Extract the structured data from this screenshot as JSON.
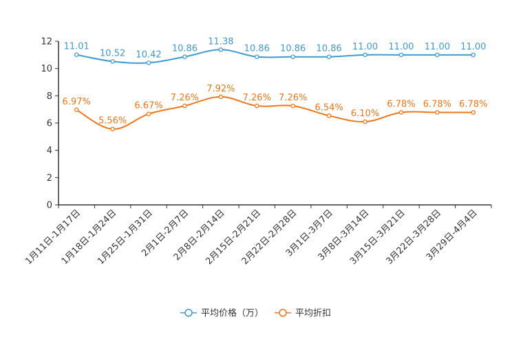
{
  "chart_data": {
    "type": "line",
    "title": "",
    "xlabel": "",
    "ylabel": "",
    "ylim": [
      0,
      12
    ],
    "yticks": [
      0,
      2,
      4,
      6,
      8,
      10,
      12
    ],
    "grid": false,
    "legend_position": "bottom-center",
    "categories": [
      "1月11日-1月17日",
      "1月18日-1月24日",
      "1月25日-1月31日",
      "2月1日-2月7日",
      "2月8日-2月14日",
      "2月15日-2月21日",
      "2月22日-2月28日",
      "3月1日-3月7日",
      "3月8日-3月14日",
      "3月15日-3月21日",
      "3月22日-3月28日",
      "3月29日-4月4日"
    ],
    "series": [
      {
        "name": "平均价格（万）",
        "color": "#3d9ad1",
        "values": [
          11.01,
          10.52,
          10.42,
          10.86,
          11.38,
          10.86,
          10.86,
          10.86,
          11.0,
          11.0,
          11.0,
          11.0
        ],
        "labels": [
          "11.01",
          "10.52",
          "10.42",
          "10.86",
          "11.38",
          "10.86",
          "10.86",
          "10.86",
          "11.00",
          "11.00",
          "11.00",
          "11.00"
        ]
      },
      {
        "name": "平均折扣",
        "color": "#f07518",
        "values": [
          6.97,
          5.56,
          6.67,
          7.26,
          7.92,
          7.26,
          7.26,
          6.54,
          6.1,
          6.78,
          6.78,
          6.78
        ],
        "labels": [
          "6.97%",
          "5.56%",
          "6.67%",
          "7.26%",
          "7.92%",
          "7.26%",
          "7.26%",
          "6.54%",
          "6.10%",
          "6.78%",
          "6.78%",
          "6.78%"
        ]
      }
    ]
  }
}
